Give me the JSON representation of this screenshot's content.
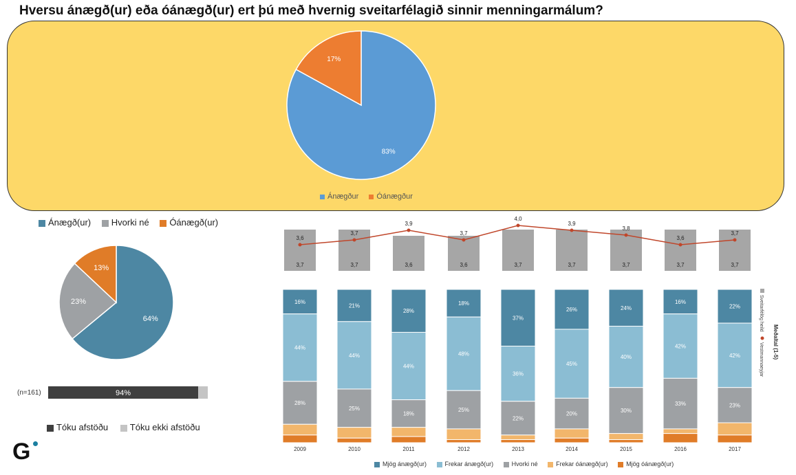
{
  "title": "Hversu ánægð(ur) eða óánægð(ur) ert þú með hvernig sveitarfélagið sinnir menningarmálum?",
  "chart_data": [
    {
      "type": "pie",
      "name": "current",
      "labels": [
        "Ánægður",
        "Óánægður"
      ],
      "values": [
        83,
        17
      ],
      "value_labels": [
        "83%",
        "17%"
      ],
      "colors": [
        "#5b9bd5",
        "#ed7d31"
      ],
      "legend": [
        "Ánægður",
        "Óánægður"
      ]
    },
    {
      "type": "pie",
      "name": "survey",
      "labels": [
        "Ánægð(ur)",
        "Hvorki né",
        "Óánægð(ur)"
      ],
      "values": [
        64,
        23,
        13
      ],
      "value_labels": [
        "64%",
        "23%",
        "13%"
      ],
      "colors": [
        "#4d87a3",
        "#9ea1a4",
        "#e07c28"
      ],
      "legend": [
        "Ánægð(ur)",
        "Hvorki né",
        "Óánægð(ur)"
      ]
    },
    {
      "type": "bar",
      "name": "response",
      "n_label": "(n=161)",
      "values": [
        94,
        6
      ],
      "value_label": "94%",
      "colors": [
        "#3f3f3f",
        "#c4c4c4"
      ],
      "legend": [
        "Tóku afstöðu",
        "Tóku ekki afstöðu"
      ]
    },
    {
      "type": "bar",
      "name": "average-score",
      "categories": [
        "2009",
        "2010",
        "2011",
        "2012",
        "2013",
        "2014",
        "2015",
        "2016",
        "2017"
      ],
      "bar_values": [
        3.7,
        3.7,
        3.6,
        3.6,
        3.7,
        3.7,
        3.7,
        3.7,
        3.7
      ],
      "bar_labels": [
        "3,7",
        "3,7",
        "3,6",
        "3,6",
        "3,7",
        "3,7",
        "3,7",
        "3,7",
        "3,7"
      ],
      "line_values": [
        3.6,
        3.7,
        3.9,
        3.7,
        4.0,
        3.9,
        3.8,
        3.6,
        3.7
      ],
      "line_labels": [
        "3,6",
        "3,7",
        "3,9",
        "3,7",
        "4,0",
        "3,9",
        "3,8",
        "3,6",
        "3,7"
      ],
      "ylim": [
        3.0,
        4.2
      ],
      "legend_title": "Meðaltal (1-5)",
      "legend": [
        "Sveitarfélög heild",
        "Vestmannaeyjar"
      ]
    },
    {
      "type": "bar",
      "name": "stacked-yearly",
      "categories": [
        "2009",
        "2010",
        "2011",
        "2012",
        "2013",
        "2014",
        "2015",
        "2016",
        "2017"
      ],
      "series": [
        {
          "name": "Mjög ánægð(ur)",
          "color": "#4d87a3",
          "values": [
            16,
            21,
            28,
            18,
            37,
            26,
            24,
            16,
            22
          ],
          "labels": [
            "16%",
            "21%",
            "28%",
            "18%",
            "37%",
            "26%",
            "24%",
            "16%",
            "22%"
          ]
        },
        {
          "name": "Frekar ánægð(ur)",
          "color": "#8bbdd3",
          "values": [
            44,
            44,
            44,
            48,
            36,
            45,
            40,
            42,
            42
          ],
          "labels": [
            "44%",
            "44%",
            "44%",
            "48%",
            "36%",
            "45%",
            "40%",
            "42%",
            "42%"
          ]
        },
        {
          "name": "Hvorki né",
          "color": "#9ea1a4",
          "values": [
            28,
            25,
            18,
            25,
            22,
            20,
            30,
            33,
            23
          ],
          "labels": [
            "28%",
            "25%",
            "18%",
            "25%",
            "22%",
            "20%",
            "30%",
            "33%",
            "23%"
          ]
        },
        {
          "name": "Frekar óánægð(ur)",
          "color": "#f2b66b",
          "values": [
            7,
            7,
            6,
            7,
            3,
            6,
            4,
            3,
            8
          ],
          "labels": [
            "",
            "",
            "",
            "",
            "",
            "",
            "",
            "",
            ""
          ]
        },
        {
          "name": "Mjög óánægð(ur)",
          "color": "#e07c28",
          "values": [
            5,
            3,
            4,
            2,
            2,
            3,
            2,
            6,
            5
          ],
          "labels": [
            "",
            "",
            "",
            "",
            "",
            "",
            "",
            "",
            ""
          ]
        }
      ],
      "ylim": [
        0,
        100
      ]
    }
  ],
  "logo": {
    "letter": "G"
  }
}
